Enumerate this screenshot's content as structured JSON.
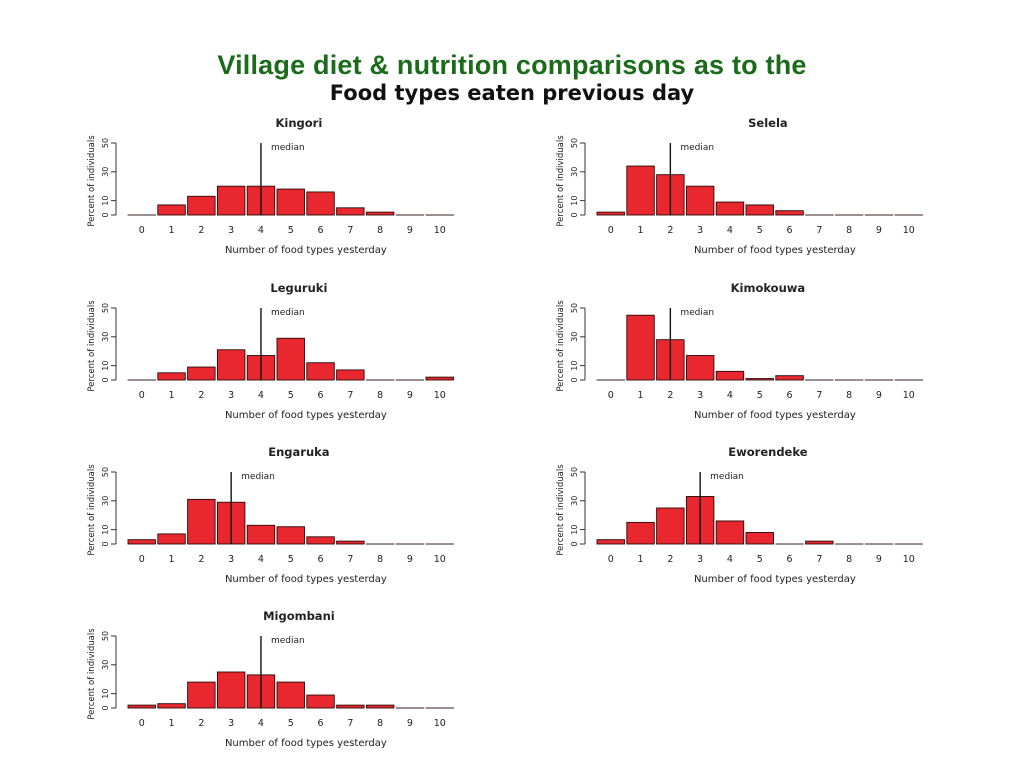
{
  "slide": {
    "title": "Village diet & nutrition comparisons as to the",
    "image_title": "Food types eaten previous day"
  },
  "colors": {
    "bar_fill": "#e8282e",
    "bar_stroke": "#2a0a0a",
    "text": "#222222",
    "slide_title": "#1a6b1a"
  },
  "chart_data": [
    {
      "type": "bar",
      "title": "Kingori",
      "categories": [
        "0",
        "1",
        "2",
        "3",
        "4",
        "5",
        "6",
        "7",
        "8",
        "9",
        "10"
      ],
      "values": [
        0,
        7,
        13,
        20,
        20,
        18,
        16,
        5,
        2,
        0,
        0
      ],
      "median": 4,
      "median_label": "median",
      "xlabel": "Number of food types yesterday",
      "ylabel": "Percent of individuals",
      "yticks": [
        "0",
        "10",
        "30",
        "50"
      ],
      "ylim": [
        0,
        50
      ]
    },
    {
      "type": "bar",
      "title": "Selela",
      "categories": [
        "0",
        "1",
        "2",
        "3",
        "4",
        "5",
        "6",
        "7",
        "8",
        "9",
        "10"
      ],
      "values": [
        2,
        34,
        28,
        20,
        9,
        7,
        3,
        0,
        0,
        0,
        0
      ],
      "median": 2,
      "median_label": "median",
      "xlabel": "Number of food types yesterday",
      "ylabel": "Percent of individuals",
      "yticks": [
        "0",
        "10",
        "30",
        "50"
      ],
      "ylim": [
        0,
        50
      ]
    },
    {
      "type": "bar",
      "title": "Leguruki",
      "categories": [
        "0",
        "1",
        "2",
        "3",
        "4",
        "5",
        "6",
        "7",
        "8",
        "9",
        "10"
      ],
      "values": [
        0,
        5,
        9,
        21,
        17,
        29,
        12,
        7,
        0,
        0,
        2
      ],
      "median": 4,
      "median_label": "median",
      "xlabel": "Number of food types yesterday",
      "ylabel": "Percent of individuals",
      "yticks": [
        "0",
        "10",
        "30",
        "50"
      ],
      "ylim": [
        0,
        50
      ]
    },
    {
      "type": "bar",
      "title": "Kimokouwa",
      "categories": [
        "0",
        "1",
        "2",
        "3",
        "4",
        "5",
        "6",
        "7",
        "8",
        "9",
        "10"
      ],
      "values": [
        0,
        45,
        28,
        17,
        6,
        1,
        3,
        0,
        0,
        0,
        0
      ],
      "median": 2,
      "median_label": "median",
      "xlabel": "Number of food types yesterday",
      "ylabel": "Percent of individuals",
      "yticks": [
        "0",
        "10",
        "30",
        "50"
      ],
      "ylim": [
        0,
        50
      ]
    },
    {
      "type": "bar",
      "title": "Engaruka",
      "categories": [
        "0",
        "1",
        "2",
        "3",
        "4",
        "5",
        "6",
        "7",
        "8",
        "9",
        "10"
      ],
      "values": [
        3,
        7,
        31,
        29,
        13,
        12,
        5,
        2,
        0,
        0,
        0
      ],
      "median": 3,
      "median_label": "median",
      "xlabel": "Number of food types yesterday",
      "ylabel": "Percent of individuals",
      "yticks": [
        "0",
        "10",
        "30",
        "50"
      ],
      "ylim": [
        0,
        50
      ]
    },
    {
      "type": "bar",
      "title": "Eworendeke",
      "categories": [
        "0",
        "1",
        "2",
        "3",
        "4",
        "5",
        "6",
        "7",
        "8",
        "9",
        "10"
      ],
      "values": [
        3,
        15,
        25,
        33,
        16,
        8,
        0,
        2,
        0,
        0,
        0
      ],
      "median": 3,
      "median_label": "median",
      "xlabel": "Number of food types yesterday",
      "ylabel": "Percent of individuals",
      "yticks": [
        "0",
        "10",
        "30",
        "50"
      ],
      "ylim": [
        0,
        50
      ]
    },
    {
      "type": "bar",
      "title": "Migombani",
      "categories": [
        "0",
        "1",
        "2",
        "3",
        "4",
        "5",
        "6",
        "7",
        "8",
        "9",
        "10"
      ],
      "values": [
        2,
        3,
        18,
        25,
        23,
        18,
        9,
        2,
        2,
        0,
        0
      ],
      "median": 4,
      "median_label": "median",
      "xlabel": "Number of food types yesterday",
      "ylabel": "Percent of individuals",
      "yticks": [
        "0",
        "10",
        "30",
        "50"
      ],
      "ylim": [
        0,
        50
      ]
    }
  ]
}
